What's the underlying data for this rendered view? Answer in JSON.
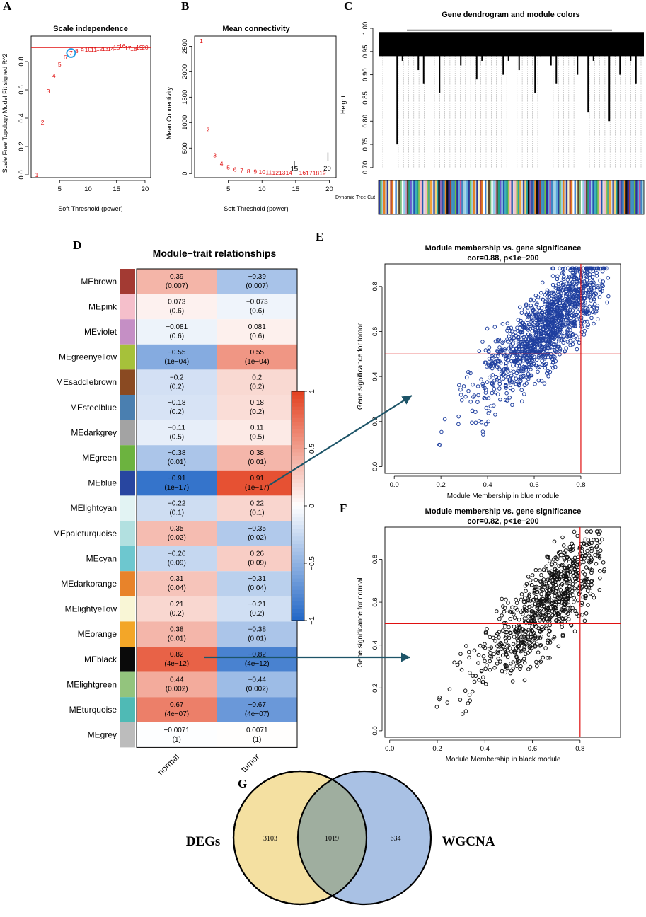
{
  "panels": {
    "A": "A",
    "B": "B",
    "C": "C",
    "D": "D",
    "E": "E",
    "F": "F",
    "G": "G"
  },
  "colors": {
    "red": "#e01010",
    "blue": "#1f3f9f",
    "arrow": "#1d5468",
    "venn_left": "#f4e0a1",
    "venn_right": "#a9c1e4",
    "venn_overlap": "#9fae9f"
  },
  "chart_data": [
    {
      "id": "A",
      "type": "scatter",
      "title": "Scale independence",
      "xlabel": "Soft Threshold (power)",
      "ylabel": "Scale Free Topology Model Fit,signed R^2",
      "xlim": [
        0,
        21
      ],
      "ylim": [
        -0.02,
        0.98
      ],
      "xticks": [
        "5",
        "10",
        "15",
        "20"
      ],
      "yticks": [
        "0.0",
        "0.2",
        "0.4",
        "0.6",
        "0.8"
      ],
      "hline": 0.9,
      "highlight": 7,
      "points": [
        {
          "power": 1,
          "r2": 0.0
        },
        {
          "power": 2,
          "r2": 0.37
        },
        {
          "power": 3,
          "r2": 0.59
        },
        {
          "power": 4,
          "r2": 0.7
        },
        {
          "power": 5,
          "r2": 0.78
        },
        {
          "power": 6,
          "r2": 0.83
        },
        {
          "power": 7,
          "r2": 0.86
        },
        {
          "power": 8,
          "r2": 0.875
        },
        {
          "power": 9,
          "r2": 0.88
        },
        {
          "power": 10,
          "r2": 0.885
        },
        {
          "power": 11,
          "r2": 0.885
        },
        {
          "power": 12,
          "r2": 0.89
        },
        {
          "power": 13,
          "r2": 0.89
        },
        {
          "power": 14,
          "r2": 0.89
        },
        {
          "power": 15,
          "r2": 0.9
        },
        {
          "power": 16,
          "r2": 0.91
        },
        {
          "power": 17,
          "r2": 0.895
        },
        {
          "power": 18,
          "r2": 0.89
        },
        {
          "power": 19,
          "r2": 0.9
        },
        {
          "power": 20,
          "r2": 0.9
        }
      ]
    },
    {
      "id": "B",
      "type": "scatter",
      "title": "Mean connectivity",
      "xlabel": "Soft Threshold (power)",
      "ylabel": "Mean Connectivity",
      "xlim": [
        0,
        21
      ],
      "ylim": [
        -80,
        2700
      ],
      "xticks": [
        "5",
        "10",
        "15",
        "20"
      ],
      "yticks": [
        "0",
        "500",
        "1000",
        "1500",
        "2000",
        "2500"
      ],
      "points": [
        {
          "power": 1,
          "k": 2600
        },
        {
          "power": 2,
          "k": 860
        },
        {
          "power": 3,
          "k": 360
        },
        {
          "power": 4,
          "k": 190
        },
        {
          "power": 5,
          "k": 120
        },
        {
          "power": 6,
          "k": 80
        },
        {
          "power": 7,
          "k": 60
        },
        {
          "power": 8,
          "k": 45
        },
        {
          "power": 9,
          "k": 35
        },
        {
          "power": 10,
          "k": 28
        },
        {
          "power": 11,
          "k": 22
        },
        {
          "power": 12,
          "k": 20
        },
        {
          "power": 13,
          "k": 18
        },
        {
          "power": 14,
          "k": 16
        },
        {
          "power": 15,
          "k": 170
        },
        {
          "power": 16,
          "k": 14
        },
        {
          "power": 17,
          "k": 12
        },
        {
          "power": 18,
          "k": 11
        },
        {
          "power": 19,
          "k": 10
        },
        {
          "power": 20,
          "k": 330
        }
      ]
    },
    {
      "id": "C",
      "type": "dendrogram",
      "title": "Gene dendrogram and module colors",
      "ylabel": "Height",
      "ylim": [
        0.68,
        1.0
      ],
      "yticks": [
        "0.70",
        "0.75",
        "0.80",
        "0.85",
        "0.90",
        "0.95",
        "1.00"
      ],
      "colorbar_label": "Dynamic Tree Cut",
      "module_colors": [
        "#2b3b9c",
        "#3a7fd6",
        "#8fd1e6",
        "#f7b8c8",
        "#2aa7a0",
        "#e8892a",
        "#3d86c6",
        "#77c86b",
        "#f6f2cc",
        "#c0a0d0",
        "#2455b0",
        "#f2a23a",
        "#0d0d0d",
        "#6bbf45",
        "#9fd0dd",
        "#b44640",
        "#5f4a2a",
        "#40b0b8",
        "#dcdcdc",
        "#8c6bb5",
        "#2c2ca0",
        "#a8d5f0",
        "#e67e22",
        "#7fbf7f",
        "#1f9e89",
        "#f0c0c8",
        "#354fa8",
        "#a13b2f",
        "#5aa8d8",
        "#cfcfcf",
        "#ffffff",
        "#6a5acd",
        "#95c24e",
        "#f3d27a",
        "#3e93c3",
        "#c85a9b"
      ],
      "heights": [
        0.98,
        0.97,
        0.96,
        0.75,
        0.93,
        0.97,
        0.95,
        0.91,
        0.88,
        0.97,
        0.96,
        0.86,
        0.94,
        0.98,
        0.95,
        0.92,
        0.97,
        0.96,
        0.89,
        0.93,
        0.97,
        0.98,
        0.95,
        0.9,
        0.93,
        0.96,
        0.91,
        0.97,
        0.95,
        0.86,
        0.94,
        0.97,
        0.92,
        0.88,
        0.96,
        0.94,
        0.97,
        0.9,
        0.95,
        0.82,
        0.93,
        0.97,
        0.96,
        0.8,
        0.94,
        0.9,
        0.97,
        0.93,
        0.88,
        0.95
      ]
    },
    {
      "id": "D",
      "type": "heatmap",
      "title": "Module−trait relationships",
      "columns": [
        "normal",
        "tumor"
      ],
      "color_scale": {
        "min": -1,
        "max": 1,
        "low": "#2166c6",
        "mid": "#ffffff",
        "high": "#e3401f",
        "ticks": [
          "1",
          "0.5",
          "0",
          "−0.5",
          "−1"
        ]
      },
      "rows": [
        {
          "module": "MEbrown",
          "color": "#a33a33",
          "values": [
            0.39,
            -0.39
          ],
          "labels": [
            "0.39",
            "−0.39"
          ],
          "pvals": [
            "(0.007)",
            "(0.007)"
          ]
        },
        {
          "module": "MEpink",
          "color": "#f5bfcb",
          "values": [
            0.073,
            -0.073
          ],
          "labels": [
            "0.073",
            "−0.073"
          ],
          "pvals": [
            "(0.6)",
            "(0.6)"
          ]
        },
        {
          "module": "MEviolet",
          "color": "#c58fc5",
          "values": [
            -0.081,
            0.081
          ],
          "labels": [
            "−0.081",
            "0.081"
          ],
          "pvals": [
            "(0.6)",
            "(0.6)"
          ]
        },
        {
          "module": "MEgreenyellow",
          "color": "#a6c13a",
          "values": [
            -0.55,
            0.55
          ],
          "labels": [
            "−0.55",
            "0.55"
          ],
          "pvals": [
            "(1e−04)",
            "(1e−04)"
          ]
        },
        {
          "module": "MEsaddlebrown",
          "color": "#8a4a22",
          "values": [
            -0.2,
            0.2
          ],
          "labels": [
            "−0.2",
            "0.2"
          ],
          "pvals": [
            "(0.2)",
            "(0.2)"
          ]
        },
        {
          "module": "MEsteelblue",
          "color": "#4a7fb0",
          "values": [
            -0.18,
            0.18
          ],
          "labels": [
            "−0.18",
            "0.18"
          ],
          "pvals": [
            "(0.2)",
            "(0.2)"
          ]
        },
        {
          "module": "MEdarkgrey",
          "color": "#a3a3a3",
          "values": [
            -0.11,
            0.11
          ],
          "labels": [
            "−0.11",
            "0.11"
          ],
          "pvals": [
            "(0.5)",
            "(0.5)"
          ]
        },
        {
          "module": "MEgreen",
          "color": "#6cb33f",
          "values": [
            -0.38,
            0.38
          ],
          "labels": [
            "−0.38",
            "0.38"
          ],
          "pvals": [
            "(0.01)",
            "(0.01)"
          ]
        },
        {
          "module": "MEblue",
          "color": "#2846a0",
          "values": [
            -0.91,
            0.91
          ],
          "labels": [
            "−0.91",
            "0.91"
          ],
          "pvals": [
            "(1e−17)",
            "(1e−17)"
          ]
        },
        {
          "module": "MElightcyan",
          "color": "#e2f3f3",
          "values": [
            -0.22,
            0.22
          ],
          "labels": [
            "−0.22",
            "0.22"
          ],
          "pvals": [
            "(0.1)",
            "(0.1)"
          ]
        },
        {
          "module": "MEpaleturquoise",
          "color": "#b2e0e0",
          "values": [
            0.35,
            -0.35
          ],
          "labels": [
            "0.35",
            "−0.35"
          ],
          "pvals": [
            "(0.02)",
            "(0.02)"
          ]
        },
        {
          "module": "MEcyan",
          "color": "#6dc7cf",
          "values": [
            -0.26,
            0.26
          ],
          "labels": [
            "−0.26",
            "0.26"
          ],
          "pvals": [
            "(0.09)",
            "(0.09)"
          ]
        },
        {
          "module": "MEdarkorange",
          "color": "#e8832a",
          "values": [
            0.31,
            -0.31
          ],
          "labels": [
            "0.31",
            "−0.31"
          ],
          "pvals": [
            "(0.04)",
            "(0.04)"
          ]
        },
        {
          "module": "MElightyellow",
          "color": "#f9f6d6",
          "values": [
            0.21,
            -0.21
          ],
          "labels": [
            "0.21",
            "−0.21"
          ],
          "pvals": [
            "(0.2)",
            "(0.2)"
          ]
        },
        {
          "module": "MEorange",
          "color": "#f3a628",
          "values": [
            0.38,
            -0.38
          ],
          "labels": [
            "0.38",
            "−0.38"
          ],
          "pvals": [
            "(0.01)",
            "(0.01)"
          ]
        },
        {
          "module": "MEblack",
          "color": "#0a0a0a",
          "values": [
            0.82,
            -0.82
          ],
          "labels": [
            "0.82",
            "−0.82"
          ],
          "pvals": [
            "(4e−12)",
            "(4e−12)"
          ]
        },
        {
          "module": "MElightgreen",
          "color": "#93c47d",
          "values": [
            0.44,
            -0.44
          ],
          "labels": [
            "0.44",
            "−0.44"
          ],
          "pvals": [
            "(0.002)",
            "(0.002)"
          ]
        },
        {
          "module": "MEturquoise",
          "color": "#4fbab5",
          "values": [
            0.67,
            -0.67
          ],
          "labels": [
            "0.67",
            "−0.67"
          ],
          "pvals": [
            "(4e−07)",
            "(4e−07)"
          ]
        },
        {
          "module": "MEgrey",
          "color": "#bcbcbc",
          "values": [
            -0.0071,
            0.0071
          ],
          "labels": [
            "−0.0071",
            "0.0071"
          ],
          "pvals": [
            "(1)",
            "(1)"
          ]
        }
      ]
    },
    {
      "id": "E",
      "type": "scatter",
      "title": "Module membership vs. gene significance",
      "subtitle": "cor=0.88, p<1e−200",
      "xlabel": "Module Membership in blue module",
      "ylabel": "Gene significance for tomor",
      "xlim": [
        -0.04,
        0.97
      ],
      "ylim": [
        -0.03,
        0.9
      ],
      "xticks": [
        "0.0",
        "0.2",
        "0.4",
        "0.6",
        "0.8"
      ],
      "yticks": [
        "0.0",
        "0.2",
        "0.4",
        "0.6",
        "0.8"
      ],
      "vline": 0.8,
      "hline": 0.5,
      "marker_color": "#1f3f9f",
      "n_points": 1300,
      "slope": 0.95,
      "intercept": 0.0,
      "spread": 0.09
    },
    {
      "id": "F",
      "type": "scatter",
      "title": "Module membership vs. gene significance",
      "subtitle": "cor=0.82, p<1e−200",
      "xlabel": "Module Membership in black module",
      "ylabel": "Gene significance for  normal",
      "xlim": [
        -0.02,
        0.97
      ],
      "ylim": [
        -0.03,
        0.95
      ],
      "xticks": [
        "0.0",
        "0.2",
        "0.4",
        "0.6",
        "0.8"
      ],
      "yticks": [
        "0.0",
        "0.2",
        "0.4",
        "0.6",
        "0.8"
      ],
      "vline": 0.8,
      "hline": 0.5,
      "marker_color": "#111111",
      "n_points": 800,
      "slope": 0.95,
      "intercept": -0.04,
      "spread": 0.1
    },
    {
      "id": "G",
      "type": "venn",
      "sets": [
        {
          "name": "DEGs",
          "only": "3103"
        },
        {
          "name": "WGCNA",
          "only": "634"
        }
      ],
      "intersection": "1019"
    }
  ]
}
